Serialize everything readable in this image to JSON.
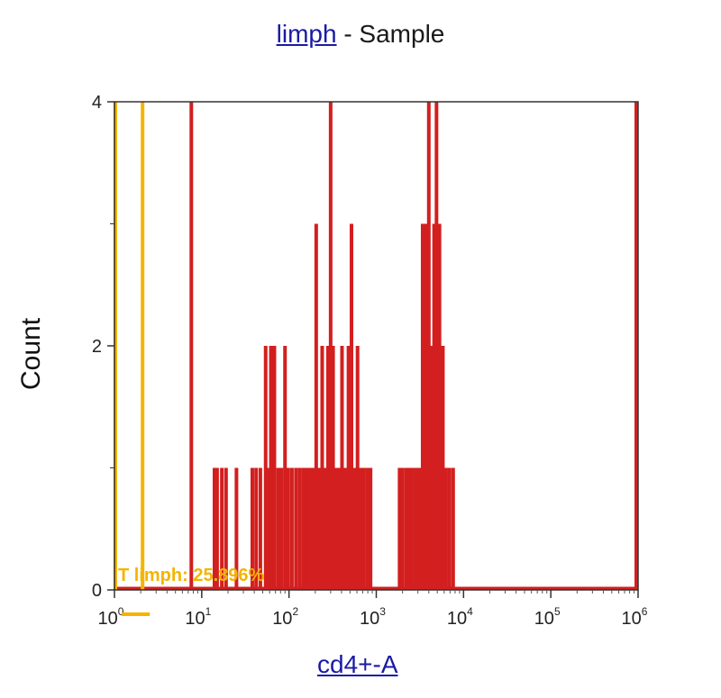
{
  "header": {
    "title_link": "limph",
    "title_rest": " - Sample"
  },
  "chart_data": {
    "type": "histogram",
    "title": "limph - Sample",
    "xlabel": "cd4+-A",
    "ylabel": "Count",
    "x_scale": "log",
    "xlim": [
      1,
      1000000
    ],
    "ylim": [
      0,
      4
    ],
    "y_ticks": [
      {
        "value": 0,
        "label": "0"
      },
      {
        "value": 2,
        "label": "2"
      },
      {
        "value": 4,
        "label": "4"
      }
    ],
    "x_ticks": [
      {
        "value": 1,
        "base": "10",
        "exp": "0"
      },
      {
        "value": 10,
        "base": "10",
        "exp": "1"
      },
      {
        "value": 100,
        "base": "10",
        "exp": "2"
      },
      {
        "value": 1000,
        "base": "10",
        "exp": "3"
      },
      {
        "value": 10000,
        "base": "10",
        "exp": "4"
      },
      {
        "value": 100000,
        "base": "10",
        "exp": "5"
      },
      {
        "value": 1000000,
        "base": "10",
        "exp": "6"
      }
    ],
    "bar_color": "#d31f1f",
    "bins": [
      {
        "x": 7.6,
        "count": 4
      },
      {
        "x": 14,
        "count": 1
      },
      {
        "x": 15,
        "count": 1
      },
      {
        "x": 17,
        "count": 1
      },
      {
        "x": 19,
        "count": 1
      },
      {
        "x": 25,
        "count": 1
      },
      {
        "x": 38,
        "count": 1
      },
      {
        "x": 42,
        "count": 1
      },
      {
        "x": 47,
        "count": 1
      },
      {
        "x": 54,
        "count": 2
      },
      {
        "x": 58,
        "count": 1
      },
      {
        "x": 62,
        "count": 2
      },
      {
        "x": 68,
        "count": 2
      },
      {
        "x": 75,
        "count": 1
      },
      {
        "x": 82,
        "count": 1
      },
      {
        "x": 90,
        "count": 2
      },
      {
        "x": 98,
        "count": 1
      },
      {
        "x": 108,
        "count": 1
      },
      {
        "x": 120,
        "count": 1
      },
      {
        "x": 132,
        "count": 1
      },
      {
        "x": 145,
        "count": 1
      },
      {
        "x": 158,
        "count": 1
      },
      {
        "x": 172,
        "count": 1
      },
      {
        "x": 188,
        "count": 1
      },
      {
        "x": 205,
        "count": 3
      },
      {
        "x": 222,
        "count": 1
      },
      {
        "x": 240,
        "count": 2
      },
      {
        "x": 260,
        "count": 1
      },
      {
        "x": 280,
        "count": 2
      },
      {
        "x": 300,
        "count": 4
      },
      {
        "x": 320,
        "count": 2
      },
      {
        "x": 345,
        "count": 1
      },
      {
        "x": 375,
        "count": 1
      },
      {
        "x": 405,
        "count": 2
      },
      {
        "x": 440,
        "count": 1
      },
      {
        "x": 480,
        "count": 2
      },
      {
        "x": 520,
        "count": 3
      },
      {
        "x": 560,
        "count": 1
      },
      {
        "x": 610,
        "count": 2
      },
      {
        "x": 660,
        "count": 1
      },
      {
        "x": 720,
        "count": 1
      },
      {
        "x": 790,
        "count": 1
      },
      {
        "x": 860,
        "count": 1
      },
      {
        "x": 1850,
        "count": 1
      },
      {
        "x": 2000,
        "count": 1
      },
      {
        "x": 2200,
        "count": 1
      },
      {
        "x": 2400,
        "count": 1
      },
      {
        "x": 2600,
        "count": 1
      },
      {
        "x": 2850,
        "count": 1
      },
      {
        "x": 3100,
        "count": 1
      },
      {
        "x": 3400,
        "count": 3
      },
      {
        "x": 3700,
        "count": 3
      },
      {
        "x": 4000,
        "count": 4
      },
      {
        "x": 4300,
        "count": 2
      },
      {
        "x": 4600,
        "count": 3
      },
      {
        "x": 4900,
        "count": 4
      },
      {
        "x": 5300,
        "count": 3
      },
      {
        "x": 5800,
        "count": 2
      },
      {
        "x": 6300,
        "count": 1
      },
      {
        "x": 6900,
        "count": 1
      },
      {
        "x": 7600,
        "count": 1
      },
      {
        "x": 1000000,
        "count": 4
      }
    ],
    "gate_lines": [
      {
        "x": 1,
        "color": "#f4b400"
      },
      {
        "x": 2.1,
        "color": "#f4b400"
      }
    ],
    "gate_label": "T limph: 25.896%",
    "gate_color": "#f4b400"
  }
}
